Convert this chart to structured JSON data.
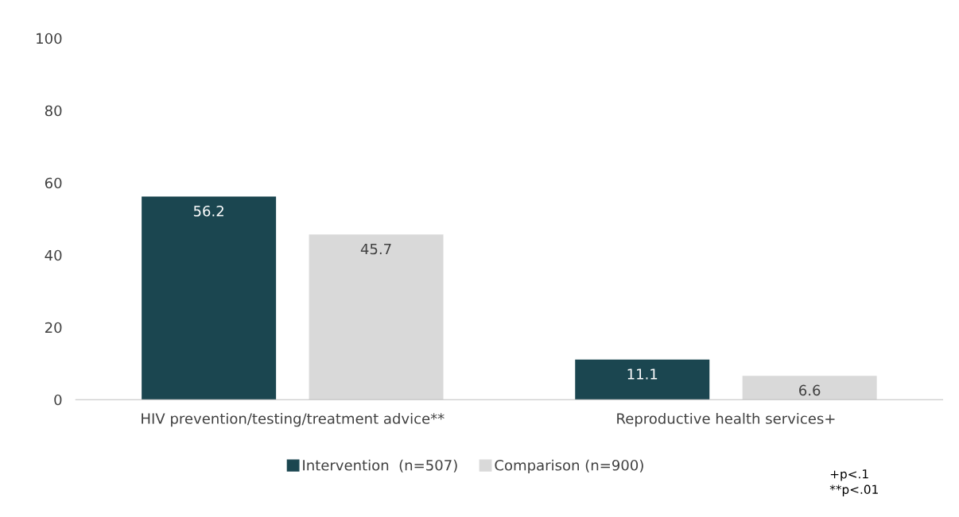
{
  "chart_data": {
    "type": "bar",
    "categories": [
      "HIV prevention/testing/treatment advice**",
      "Reproductive health services+"
    ],
    "series": [
      {
        "name": "Intervention  (n=507)",
        "color": "#1b4650",
        "values": [
          56.2,
          11.1
        ]
      },
      {
        "name": "Comparison (n=900)",
        "color": "#d9d9d9",
        "values": [
          45.7,
          6.6
        ]
      }
    ],
    "ylim": [
      0,
      100
    ],
    "yticks": [
      0,
      20,
      40,
      60,
      80,
      100
    ],
    "grid": false,
    "legend": "bottom",
    "data_labels": true,
    "annotations": [
      "+p<.1\n**p<.01"
    ]
  }
}
